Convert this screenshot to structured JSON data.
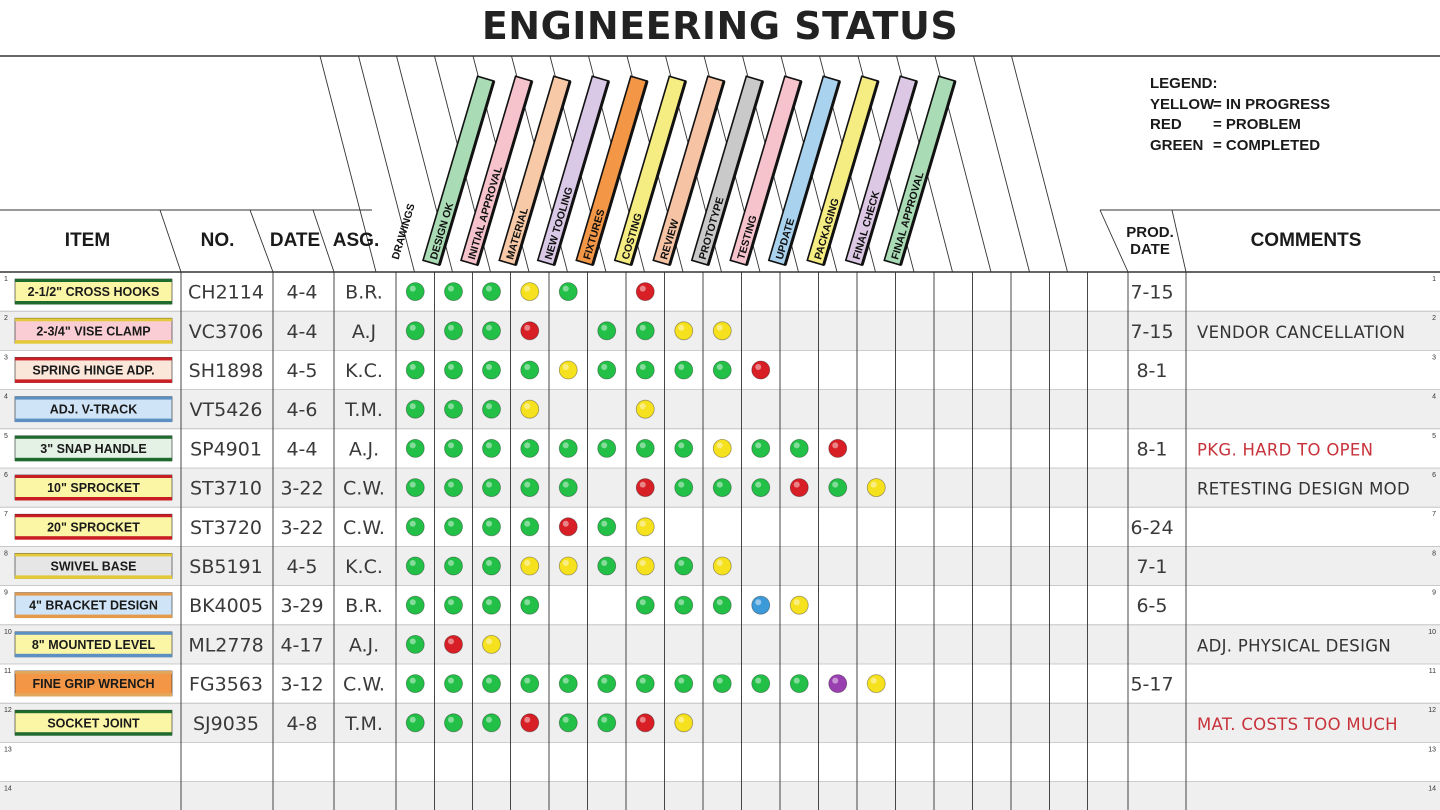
{
  "title": "ENGINEERING STATUS",
  "legend": {
    "heading": "LEGEND:",
    "entries": [
      {
        "label": "YELLOW",
        "meaning": "= IN PROGRESS"
      },
      {
        "label": "RED",
        "meaning": "= PROBLEM"
      },
      {
        "label": "GREEN",
        "meaning": "= COMPLETED"
      }
    ]
  },
  "headers": {
    "item": "ITEM",
    "no": "NO.",
    "date": "DATE",
    "asg": "ASG.",
    "prod_date_line1": "PROD.",
    "prod_date_line2": "DATE",
    "comments": "COMMENTS"
  },
  "stages": [
    {
      "label": "DRAWINGS",
      "color": "#ffffff"
    },
    {
      "label": "DESIGN OK",
      "color": "#a9dcb4"
    },
    {
      "label": "INITIAL APPROVAL",
      "color": "#f6c3cc"
    },
    {
      "label": "MATERIAL",
      "color": "#f7c9a6"
    },
    {
      "label": "NEW TOOLING",
      "color": "#d9c8e6"
    },
    {
      "label": "FIXTURES",
      "color": "#f39646"
    },
    {
      "label": "COSTING",
      "color": "#f5ec82"
    },
    {
      "label": "REVIEW",
      "color": "#f6c3a4"
    },
    {
      "label": "PROTOTYPE",
      "color": "#c9c9c9"
    },
    {
      "label": "TESTING",
      "color": "#f6c3cc"
    },
    {
      "label": "UPDATE",
      "color": "#a9d2ee"
    },
    {
      "label": "PACKAGING",
      "color": "#f5ec82"
    },
    {
      "label": "FINAL CHECK",
      "color": "#dcc8e4"
    },
    {
      "label": "FINAL APPROVAL",
      "color": "#a9dcb4"
    }
  ],
  "colors": {
    "G": "#22c047",
    "Y": "#f6e11e",
    "R": "#d81f26",
    "B": "#3d9ad8",
    "P": "#9a3fb0"
  },
  "rows": [
    {
      "num": "1",
      "item": "2-1/2\" CROSS HOOKS",
      "tag_bg": "#fbf6a6",
      "tag_border": "#1f6b2e",
      "no": "CH2114",
      "date": "4-4",
      "asg": "B.R.",
      "dots": "GGGYG.R",
      "prod": "7-15",
      "comment": "",
      "comment_color": "#333333"
    },
    {
      "num": "2",
      "item": "2-3/4\" VISE CLAMP",
      "tag_bg": "#f9cdd3",
      "tag_border": "#e3c838",
      "no": "VC3706",
      "date": "4-4",
      "asg": "A.J",
      "dots": "GGGR.GGYY",
      "prod": "7-15",
      "comment": "VENDOR CANCELLATION",
      "comment_color": "#333333"
    },
    {
      "num": "3",
      "item": "SPRING HINGE ADP.",
      "tag_bg": "#fbe7da",
      "tag_border": "#c81e24",
      "no": "SH1898",
      "date": "4-5",
      "asg": "K.C.",
      "dots": "GGGGYGGGGR",
      "prod": "8-1",
      "comment": "",
      "comment_color": "#333333"
    },
    {
      "num": "4",
      "item": "ADJ. V-TRACK",
      "tag_bg": "#cfe5f7",
      "tag_border": "#5c8fc2",
      "no": "VT5426",
      "date": "4-6",
      "asg": "T.M.",
      "dots": "GGGY..Y",
      "prod": "",
      "comment": "",
      "comment_color": "#333333"
    },
    {
      "num": "5",
      "item": "3\" SNAP HANDLE",
      "tag_bg": "#e4f2e6",
      "tag_border": "#1f6b2e",
      "no": "SP4901",
      "date": "4-4",
      "asg": "A.J.",
      "dots": "GGGGGGGGYGGR",
      "prod": "8-1",
      "comment": "PKG. HARD TO OPEN",
      "comment_color": "#c8323a"
    },
    {
      "num": "6",
      "item": "10\" SPROCKET",
      "tag_bg": "#fbf6a6",
      "tag_border": "#c81e24",
      "no": "ST3710",
      "date": "3-22",
      "asg": "C.W.",
      "dots": "GGGGG.RGGGRGY",
      "prod": "",
      "comment": "RETESTING DESIGN MOD",
      "comment_color": "#333333"
    },
    {
      "num": "7",
      "item": "20\" SPROCKET",
      "tag_bg": "#fbf6a6",
      "tag_border": "#c81e24",
      "no": "ST3720",
      "date": "3-22",
      "asg": "C.W.",
      "dots": "GGGGRGY",
      "prod": "6-24",
      "comment": "",
      "comment_color": "#333333"
    },
    {
      "num": "8",
      "item": "SWIVEL BASE",
      "tag_bg": "#e6e6e6",
      "tag_border": "#e3c838",
      "no": "SB5191",
      "date": "4-5",
      "asg": "K.C.",
      "dots": "GGGYYGYGY",
      "prod": "7-1",
      "comment": "",
      "comment_color": "#333333"
    },
    {
      "num": "9",
      "item": "4\" BRACKET DESIGN",
      "tag_bg": "#cfe5f7",
      "tag_border": "#e39a4a",
      "no": "BK4005",
      "date": "3-29",
      "asg": "B.R.",
      "dots": "GGGG..GGGBY",
      "prod": "6-5",
      "comment": "",
      "comment_color": "#333333"
    },
    {
      "num": "10",
      "item": "8\" MOUNTED LEVEL",
      "tag_bg": "#fbf6a6",
      "tag_border": "#5c8fc2",
      "no": "ML2778",
      "date": "4-17",
      "asg": "A.J.",
      "dots": "GRY",
      "prod": "",
      "comment": "ADJ. PHYSICAL DESIGN",
      "comment_color": "#333333"
    },
    {
      "num": "11",
      "item": "FINE GRIP WRENCH",
      "tag_bg": "#f39646",
      "tag_border": "#e3a55a",
      "no": "FG3563",
      "date": "3-12",
      "asg": "C.W.",
      "dots": "GGGGGGGGGGGPY",
      "prod": "5-17",
      "comment": "",
      "comment_color": "#333333"
    },
    {
      "num": "12",
      "item": "SOCKET JOINT",
      "tag_bg": "#fbf6a6",
      "tag_border": "#1f6b2e",
      "no": "SJ9035",
      "date": "4-8",
      "asg": "T.M.",
      "dots": "GGGRGGRY",
      "prod": "",
      "comment": "MAT. COSTS TOO MUCH",
      "comment_color": "#c8323a"
    },
    {
      "num": "13",
      "item": "",
      "tag_bg": "",
      "tag_border": "",
      "no": "",
      "date": "",
      "asg": "",
      "dots": "",
      "prod": "",
      "comment": "",
      "comment_color": "#333333"
    },
    {
      "num": "14",
      "item": "",
      "tag_bg": "",
      "tag_border": "",
      "no": "",
      "date": "",
      "asg": "",
      "dots": "",
      "prod": "",
      "comment": "",
      "comment_color": "#333333"
    }
  ]
}
